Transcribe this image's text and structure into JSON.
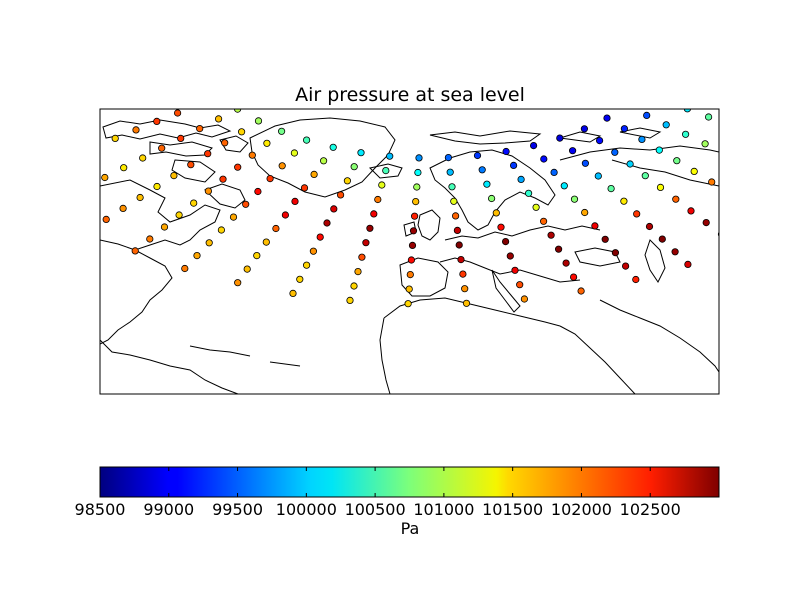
{
  "title": "Air pressure at sea level",
  "colorbar": {
    "label": "Pa",
    "min": 98500,
    "max": 103000,
    "ticks": [
      "98500",
      "99000",
      "99500",
      "100000",
      "100500",
      "101000",
      "101500",
      "102000",
      "102500"
    ],
    "colormap": "jet"
  },
  "chart_data": {
    "type": "scatter",
    "title": "Air pressure at sea level",
    "value_label": "Pa",
    "value_range": [
      98500,
      103000
    ],
    "description_of_points": "regular lat/lon grid of colored dots over North Atlantic and Europe; low pressure (blue) near Greenland/Iceland, high pressure (red) over the central Atlantic and Iberia",
    "grid_rows": [
      {
        "row": 0,
        "values": [
          99200,
          99100,
          99000,
          98950,
          98900,
          98950,
          99100,
          99300,
          99500,
          99700,
          99900,
          100100,
          100300,
          100500,
          100700,
          100900,
          101000,
          101100
        ]
      },
      {
        "row": 1,
        "values": [
          99600,
          99400,
          99200,
          99100,
          99000,
          99100,
          99300,
          99600,
          99900,
          100200,
          100500,
          100800,
          101000,
          101200,
          101400,
          101500,
          101600,
          101700
        ]
      },
      {
        "row": 2,
        "values": [
          100100,
          99900,
          99700,
          99500,
          99400,
          99500,
          99800,
          100100,
          100500,
          100900,
          101200,
          101500,
          101700,
          101800,
          101900,
          102000,
          102000,
          102100
        ]
      },
      {
        "row": 3,
        "values": [
          100600,
          100400,
          100200,
          100000,
          99900,
          100100,
          100400,
          100800,
          101200,
          101600,
          101900,
          102100,
          102200,
          102200,
          102200,
          102200,
          102200,
          102200
        ]
      },
      {
        "row": 4,
        "values": [
          101100,
          100900,
          100700,
          100600,
          100600,
          100800,
          101200,
          101600,
          102000,
          102300,
          102500,
          102600,
          102500,
          102400,
          102200,
          102100,
          102000,
          101900
        ]
      },
      {
        "row": 5,
        "values": [
          101500,
          101400,
          101300,
          101300,
          101400,
          101700,
          102000,
          102400,
          102700,
          102900,
          102900,
          102800,
          102500,
          102100,
          101800,
          101600,
          101500,
          101500
        ]
      },
      {
        "row": 6,
        "values": [
          101800,
          101800,
          101900,
          102000,
          102200,
          102500,
          102800,
          103000,
          103000,
          102900,
          102700,
          102400,
          102000,
          101700,
          101500,
          101400,
          101400,
          101500
        ]
      },
      {
        "row": 7,
        "values": [
          102000,
          102100,
          102300,
          102500,
          102800,
          103000,
          103000,
          102900,
          102700,
          102400,
          102100,
          101800,
          101600,
          101500,
          101500,
          101600,
          101700,
          101800
        ]
      },
      {
        "row": 8,
        "values": [
          102100,
          102300,
          102600,
          102900,
          103000,
          103000,
          102800,
          102500,
          102200,
          101900,
          101700,
          101500,
          101500,
          101600,
          101700,
          101800,
          101900,
          102000
        ]
      },
      {
        "row": 9,
        "values": [
          102200,
          102500,
          102800,
          103000,
          102900,
          102700,
          102400,
          102100,
          101800,
          101600,
          101500,
          101500,
          101600,
          101700,
          101900,
          102000,
          102100,
          102100
        ]
      },
      {
        "row": 10,
        "values": [
          102300,
          102600,
          102800,
          102800,
          102600,
          102300,
          102000,
          101800,
          101600,
          101500,
          101500,
          101600,
          101800,
          101900,
          102000,
          102100,
          102100,
          102000
        ]
      }
    ]
  }
}
